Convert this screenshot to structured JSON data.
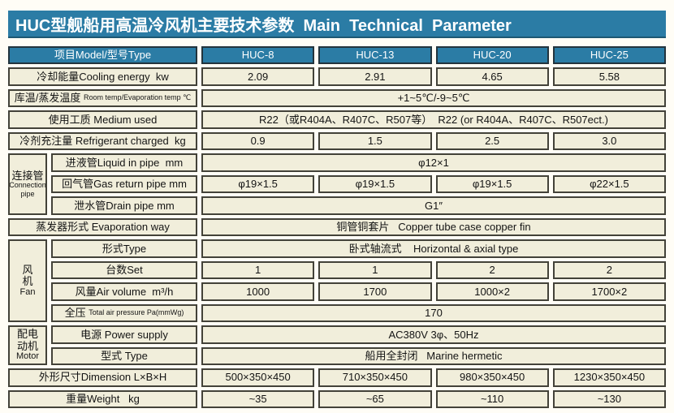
{
  "title": "HUC型舰船用高温冷风机主要技术参数  Main  Technical  Parameter",
  "colors": {
    "banner_bg": "#2b7ca5",
    "cell_bg": "#f1eedb",
    "cell_border": "#434239",
    "page_bg": "#fffdf6",
    "header_text": "#ffffff"
  },
  "header": {
    "label": "项目Model/型号Type",
    "models": [
      "HUC-8",
      "HUC-13",
      "HUC-20",
      "HUC-25"
    ]
  },
  "groups": {
    "connection": {
      "lines": [
        "连接管",
        "Connection",
        "pipe"
      ]
    },
    "fan": {
      "lines": [
        "风",
        "机",
        "Fan"
      ]
    },
    "motor": {
      "lines": [
        "配电",
        "动机",
        "Motor"
      ]
    }
  },
  "rows": {
    "cooling": {
      "label": "冷却能量Cooling energy  kw",
      "values": [
        "2.09",
        "2.91",
        "4.65",
        "5.58"
      ]
    },
    "room_temp": {
      "label_zh": "库温/蒸发温度 ",
      "label_en": "Room temp/Evaporation temp ℃",
      "value": "+1~5℃/-9~5℃"
    },
    "medium": {
      "label": "使用工质 Medium used",
      "value": "R22（或R404A、R407C、R507等）  R22 (or R404A、R407C、R507ect.)"
    },
    "refrigerant": {
      "label": "冷剂充注量 Refrigerant charged  kg",
      "values": [
        "0.9",
        "1.5",
        "2.5",
        "3.0"
      ]
    },
    "liquid_pipe": {
      "label": "进液管Liquid in pipe  mm",
      "value": "φ12×1"
    },
    "gas_pipe": {
      "label": "回气管Gas return pipe mm",
      "values": [
        "φ19×1.5",
        "φ19×1.5",
        "φ19×1.5",
        "φ22×1.5"
      ]
    },
    "drain_pipe": {
      "label": "泄水管Drain pipe mm",
      "value": "G1″"
    },
    "evaporator": {
      "label": "蒸发器形式 Evaporation way",
      "value": "铜管铜套片   Copper tube case copper fin"
    },
    "fan_type": {
      "label": "形式Type",
      "value": "卧式轴流式    Horizontal & axial type"
    },
    "fan_sets": {
      "label": "台数Set",
      "values": [
        "1",
        "1",
        "2",
        "2"
      ]
    },
    "air_volume": {
      "label": "风量Air volume  m³/h",
      "values": [
        "1000",
        "1700",
        "1000×2",
        "1700×2"
      ]
    },
    "pressure": {
      "label_zh": "全压 ",
      "label_en": "Total air pressure Pa(mmWg)",
      "value": "170"
    },
    "power": {
      "label": "电源 Power supply",
      "value": "AC380V 3φ、50Hz"
    },
    "motor_type": {
      "label": "型式 Type",
      "value": "船用全封闭   Marine hermetic"
    },
    "dimension": {
      "label": "外形尺寸Dimension L×B×H",
      "values": [
        "500×350×450",
        "710×350×450",
        "980×350×450",
        "1230×350×450"
      ]
    },
    "weight": {
      "label": "重量Weight   kg",
      "values": [
        "~35",
        "~65",
        "~110",
        "~130"
      ]
    }
  }
}
